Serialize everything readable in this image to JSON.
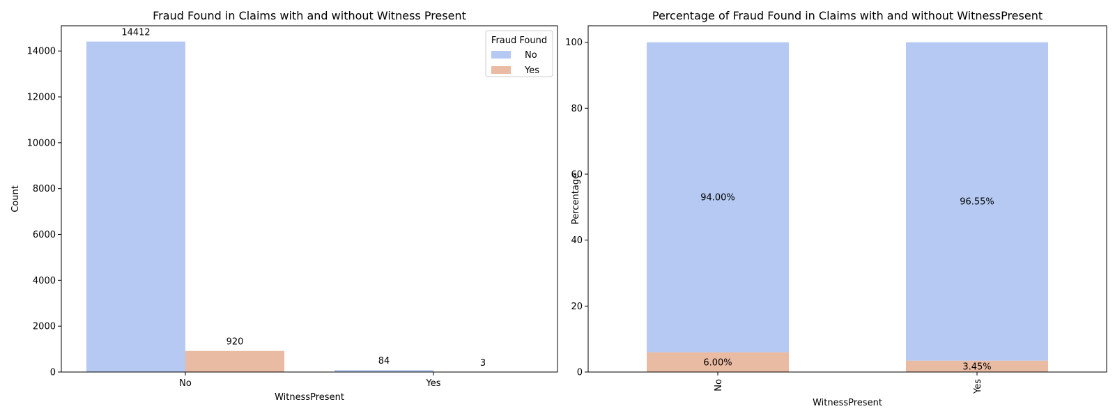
{
  "chart_data": [
    {
      "type": "bar",
      "title": "Fraud Found in Claims with and without Witness Present",
      "xlabel": "WitnessPresent",
      "ylabel": "Count",
      "categories": [
        "No",
        "Yes"
      ],
      "series": [
        {
          "name": "No",
          "values": [
            14412,
            84
          ],
          "color": "#b5c9f2"
        },
        {
          "name": "Yes",
          "values": [
            920,
            3
          ],
          "color": "#eabba3"
        }
      ],
      "data_labels": [
        [
          "14412",
          "84"
        ],
        [
          "920",
          "3"
        ]
      ],
      "ylim": [
        0,
        15100
      ],
      "yticks": [
        0,
        2000,
        4000,
        6000,
        8000,
        10000,
        12000,
        14000
      ],
      "legend": {
        "title": "Fraud Found",
        "placement": "top-right"
      }
    },
    {
      "type": "bar",
      "stacked": true,
      "title": "Percentage of Fraud Found in Claims with and without WitnessPresent",
      "xlabel": "WitnessPresent",
      "ylabel": "Percentage",
      "categories": [
        "No",
        "Yes"
      ],
      "series": [
        {
          "name": "No",
          "values": [
            94.0,
            96.55
          ],
          "color": "#b5c9f2"
        },
        {
          "name": "Yes",
          "values": [
            6.0,
            3.45
          ],
          "color": "#eabba3"
        }
      ],
      "data_labels": [
        [
          "94.00%",
          "96.55%"
        ],
        [
          "6.00%",
          "3.45%"
        ]
      ],
      "ylim": [
        0,
        105
      ],
      "yticks": [
        0,
        20,
        40,
        60,
        80,
        100
      ],
      "xtick_rotation": 90
    }
  ]
}
